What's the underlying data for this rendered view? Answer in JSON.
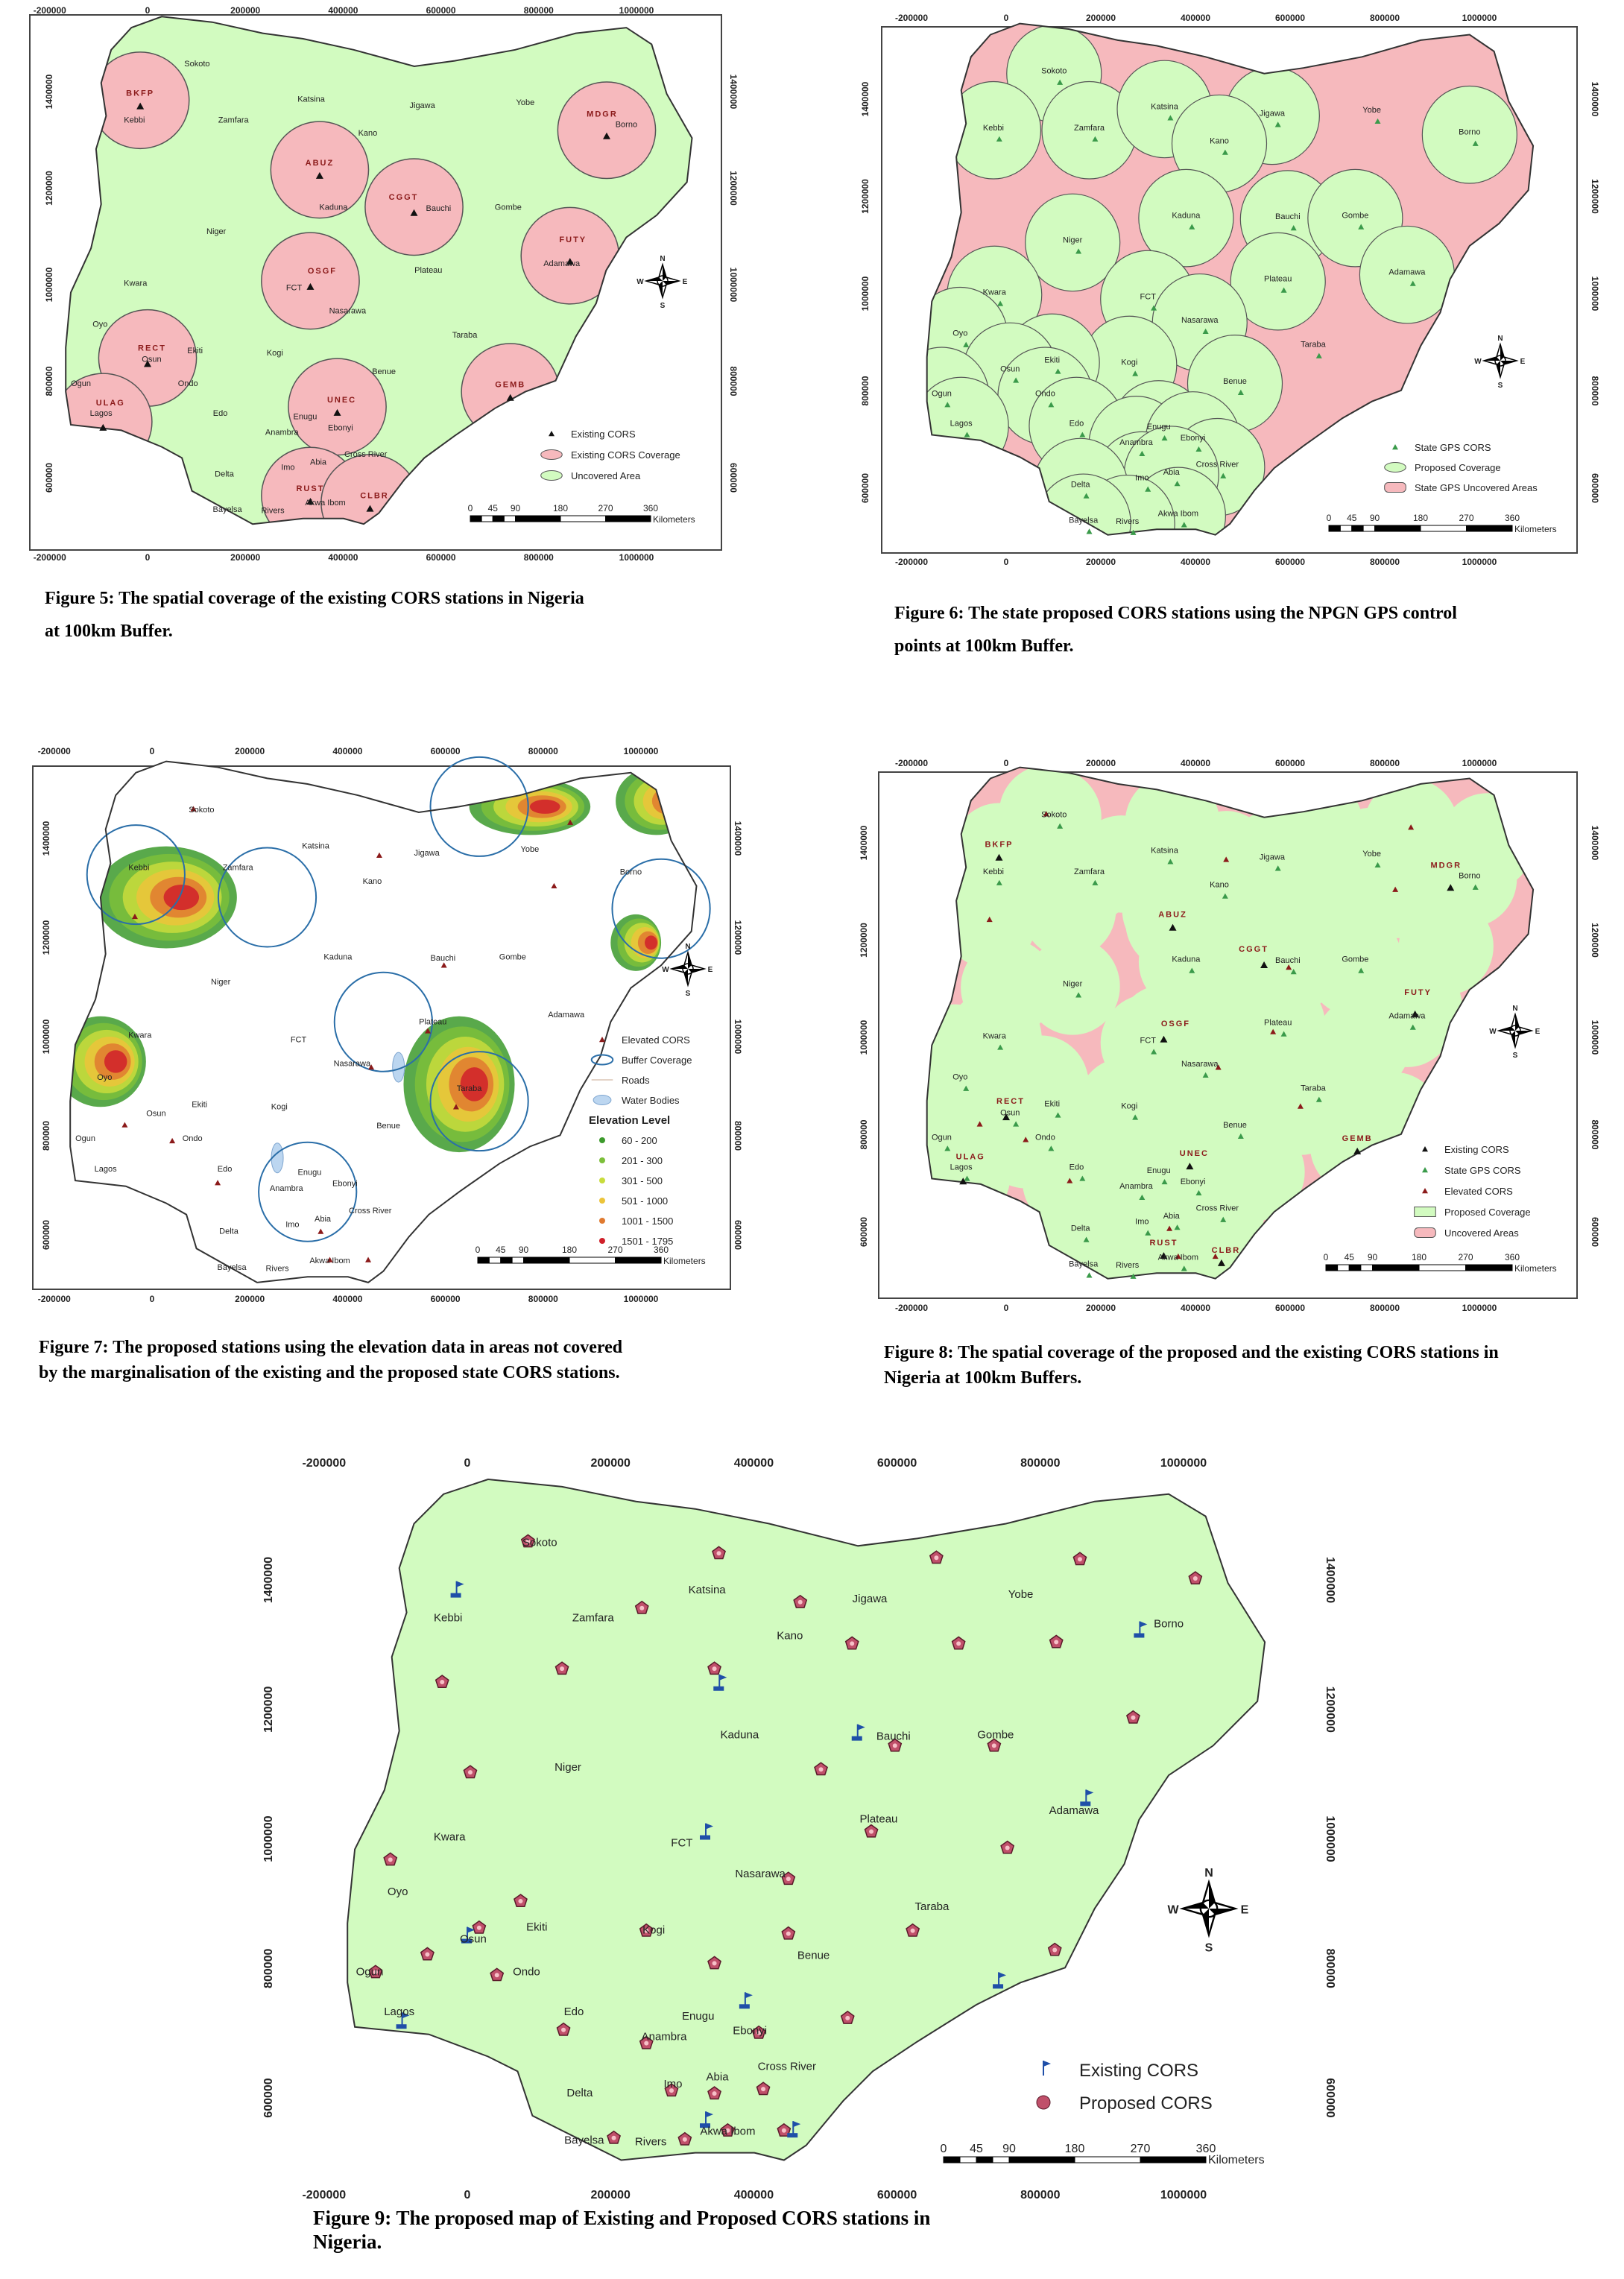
{
  "axes": {
    "x_ticks": [
      "-200000",
      "0",
      "200000",
      "400000",
      "600000",
      "800000",
      "1000000"
    ],
    "y_ticks": [
      "1400000",
      "1200000",
      "1000000",
      "800000",
      "600000"
    ]
  },
  "scale_bar": {
    "labels": [
      "0",
      "45",
      "90",
      "180",
      "270",
      "360"
    ],
    "unit": "Kilometers"
  },
  "compass": {
    "n": "N",
    "s": "S",
    "e": "E",
    "w": "W"
  },
  "states": [
    "Sokoto",
    "Kebbi",
    "Zamfara",
    "Katsina",
    "Jigawa",
    "Yobe",
    "Kano",
    "Borno",
    "Kaduna",
    "Bauchi",
    "Gombe",
    "Niger",
    "Adamawa",
    "Plateau",
    "FCT",
    "Kwara",
    "Nasarawa",
    "Oyo",
    "Taraba",
    "Kogi",
    "Ekiti",
    "Osun",
    "Ondo",
    "Ogun",
    "Benue",
    "Edo",
    "Enugu",
    "Lagos",
    "Anambra",
    "Ebonyi",
    "Cross River",
    "Imo",
    "Abia",
    "Delta",
    "Akwa Ibom",
    "Rivers",
    "Bayelsa"
  ],
  "existing_cors": [
    "BKFP",
    "ABUZ",
    "MDGR",
    "CGGT",
    "OSGF",
    "FUTY",
    "RECT",
    "GEMB",
    "ULAG",
    "UNEC",
    "RUST",
    "CLBR"
  ],
  "colors": {
    "covered": "#d2fbc0",
    "uncovered": "#f6b9bd",
    "border": "#333333",
    "existing_marker": "#1f4fa8",
    "proposed_marker": "#c0506a",
    "buffer_outline": "#2a6ea8",
    "water": "#bcd6f0"
  },
  "figures": [
    {
      "id": "fig5",
      "caption": [
        "Figure 5: The spatial coverage of the existing CORS stations in Nigeria",
        "at 100km Buffer."
      ],
      "legend": [
        {
          "symbol": "black-triangle",
          "label": "Existing CORS"
        },
        {
          "symbol": "pink-ellipse",
          "label": "Existing CORS Coverage"
        },
        {
          "symbol": "green-ellipse",
          "label": "Uncovered Area"
        }
      ]
    },
    {
      "id": "fig6",
      "caption": [
        "Figure 6: The state proposed CORS stations using the NPGN GPS control",
        "points at 100km Buffer."
      ],
      "legend": [
        {
          "symbol": "green-triangle",
          "label": "State GPS CORS"
        },
        {
          "symbol": "green-ellipse",
          "label": "Proposed Coverage"
        },
        {
          "symbol": "pink-rounded",
          "label": "State GPS Uncovered Areas"
        }
      ]
    },
    {
      "id": "fig7",
      "caption": [
        "Figure 7: The proposed stations using the elevation data in areas not covered",
        " by the marginalisation of the existing and the proposed state CORS stations."
      ],
      "legend": [
        {
          "symbol": "red-triangle",
          "label": "Elevated CORS"
        },
        {
          "symbol": "blue-ring",
          "label": "Buffer Coverage"
        },
        {
          "symbol": "road-line",
          "label": "Roads"
        },
        {
          "symbol": "water-blob",
          "label": "Water Bodies"
        }
      ],
      "elevation_title": "Elevation Level",
      "elevation_classes": [
        {
          "label": "60 - 200",
          "color": "#3c9a2c"
        },
        {
          "label": "201 - 300",
          "color": "#7cbf3a"
        },
        {
          "label": "301 - 500",
          "color": "#c8dc3c"
        },
        {
          "label": "501 - 1000",
          "color": "#ecc43a"
        },
        {
          "label": "1001 - 1500",
          "color": "#e07a30"
        },
        {
          "label": "1501 - 1795",
          "color": "#d0202a"
        }
      ]
    },
    {
      "id": "fig8",
      "caption": [
        "Figure 8: The spatial coverage of the proposed and the existing CORS stations in",
        "Nigeria at 100km Buffers."
      ],
      "legend": [
        {
          "symbol": "black-triangle",
          "label": "Existing CORS"
        },
        {
          "symbol": "green-triangle",
          "label": "State GPS CORS"
        },
        {
          "symbol": "red-triangle",
          "label": "Elevated CORS"
        },
        {
          "symbol": "green-rect",
          "label": "Proposed Coverage"
        },
        {
          "symbol": "pink-rounded",
          "label": "Uncovered Areas"
        }
      ]
    },
    {
      "id": "fig9",
      "caption": [
        "Figure 9:  The proposed map of Existing and Proposed CORS stations in",
        "Nigeria."
      ],
      "legend": [
        {
          "symbol": "blue-flag",
          "label": "Existing CORS"
        },
        {
          "symbol": "pentagon",
          "label": "Proposed CORS"
        }
      ]
    }
  ]
}
